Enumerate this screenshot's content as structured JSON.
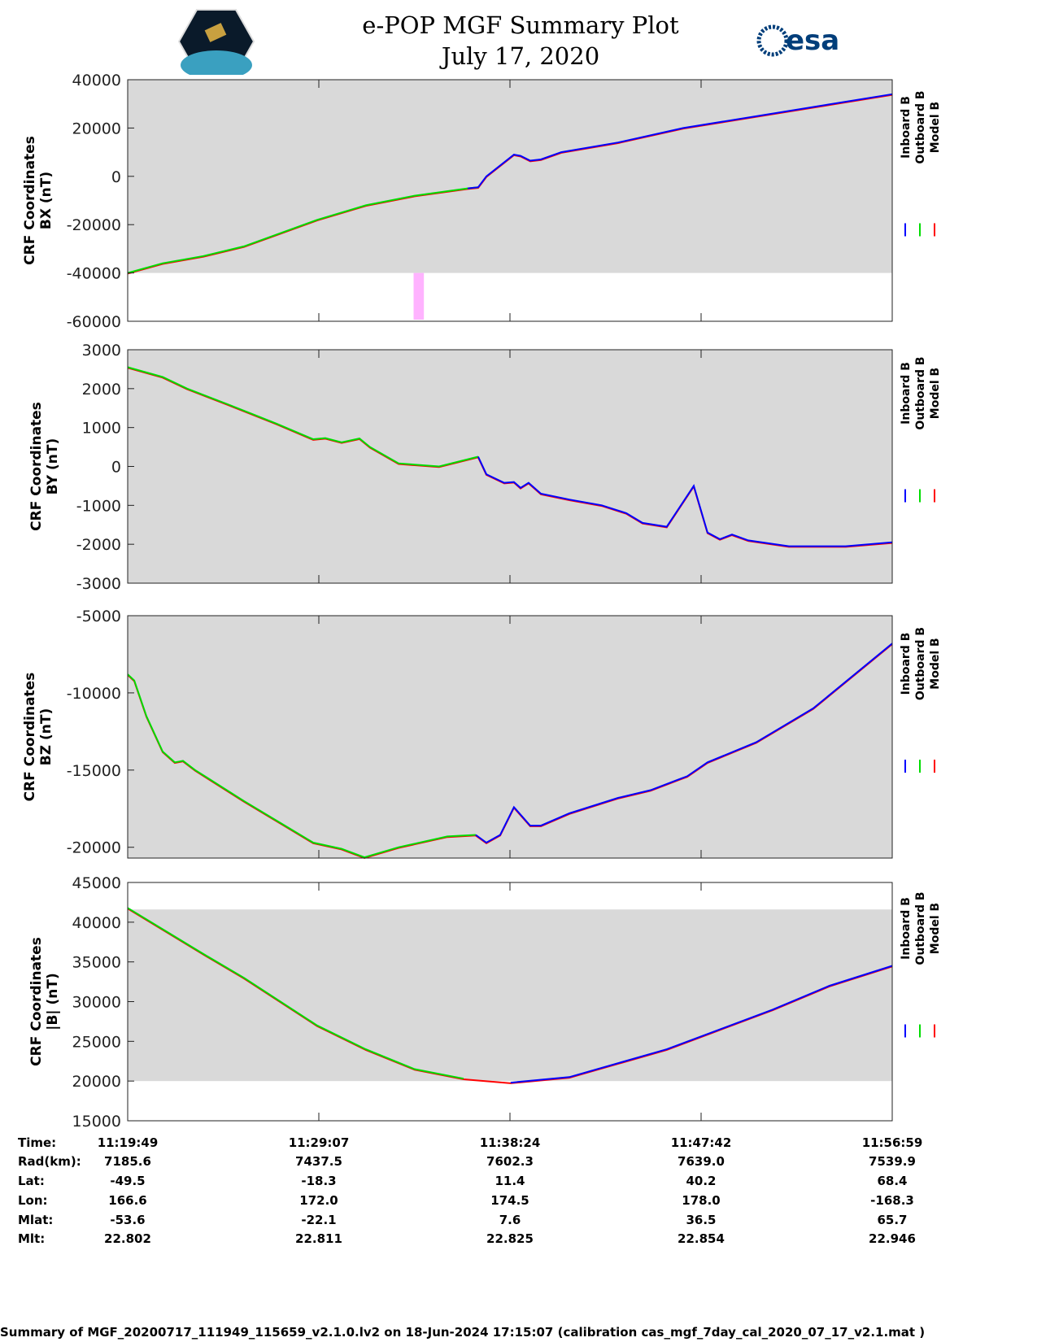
{
  "header": {
    "title_line1": "e-POP MGF Summary Plot",
    "title_line2": "July 17, 2020",
    "logo_right": "esa",
    "logo_left": "CASSIOPE"
  },
  "legend": [
    "Inboard B",
    "Outboard B",
    "Model B"
  ],
  "colors": {
    "inboard": "#0000ff",
    "outboard": "#00dd00",
    "model": "#ff0000",
    "background": "#d9d9d9",
    "flag": "#ffb3ff"
  },
  "chart_data": [
    {
      "type": "line",
      "ylabel": [
        "CRF Coordinates",
        "BX (nT)"
      ],
      "ylim": [
        -60000,
        40000
      ],
      "yticks": [
        40000,
        20000,
        0,
        -20000,
        -40000,
        -60000
      ],
      "valid_range": [
        -40000,
        40000
      ],
      "flag_interval": [
        13.9,
        14.4
      ],
      "x": [
        0,
        1.7,
        3.68,
        5.65,
        9.21,
        11.58,
        13.95,
        16.53,
        17.04,
        17.44,
        18.78,
        19.1,
        19.57,
        20.09,
        21.08,
        23.84,
        27.01,
        31.36,
        37.17
      ],
      "y": [
        -40000,
        -36000,
        -33000,
        -29000,
        -18000,
        -12000,
        -8000,
        -5000,
        -4500,
        0,
        9000,
        8500,
        6500,
        7000,
        10000,
        14000,
        20000,
        26000,
        34000
      ]
    },
    {
      "type": "line",
      "ylabel": [
        "CRF Coordinates",
        "BY (nT)"
      ],
      "ylim": [
        -3000,
        3000
      ],
      "yticks": [
        3000,
        2000,
        1000,
        0,
        -1000,
        -2000,
        -3000
      ],
      "valid_range": [
        -3000,
        3000
      ],
      "x": [
        0,
        1.7,
        2.89,
        4.86,
        7.24,
        9.02,
        9.61,
        10.4,
        11.27,
        11.78,
        13.17,
        15.14,
        17.04,
        17.44,
        18.31,
        18.78,
        19.1,
        19.49,
        20.09,
        21.47,
        23.05,
        24.24,
        25.03,
        26.21,
        27.52,
        28.19,
        28.79,
        29.38,
        30.17,
        32.15,
        34.91,
        37.17
      ],
      "y": [
        2550,
        2300,
        2000,
        1600,
        1100,
        700,
        730,
        620,
        720,
        500,
        80,
        0,
        250,
        -200,
        -420,
        -400,
        -550,
        -420,
        -700,
        -850,
        -1000,
        -1200,
        -1450,
        -1550,
        -500,
        -1700,
        -1870,
        -1750,
        -1900,
        -2050,
        -2050,
        -1950
      ]
    },
    {
      "type": "line",
      "ylabel": [
        "CRF Coordinates",
        "BZ (nT)"
      ],
      "ylim": [
        -20700,
        -5000
      ],
      "yticks": [
        -5000,
        -10000,
        -15000,
        -20000
      ],
      "valid_range": [
        -20700,
        -5000
      ],
      "x": [
        0,
        0.32,
        0.91,
        1.7,
        2.29,
        2.69,
        3.28,
        5.65,
        9.02,
        10.4,
        11.51,
        13.17,
        15.54,
        16.92,
        17.44,
        18.11,
        18.78,
        19.57,
        20.09,
        21.47,
        23.84,
        25.42,
        26.21,
        26.8,
        27.2,
        28.19,
        30.56,
        33.33,
        37.17
      ],
      "y": [
        -8800,
        -9200,
        -11500,
        -13800,
        -14500,
        -14400,
        -15000,
        -17000,
        -19700,
        -20100,
        -20650,
        -20000,
        -19300,
        -19200,
        -19700,
        -19200,
        -17400,
        -18600,
        -18600,
        -17800,
        -16800,
        -16300,
        -15900,
        -15600,
        -15400,
        -14500,
        -13200,
        -11000,
        -6800
      ]
    },
    {
      "type": "line",
      "ylabel": [
        "CRF Coordinates",
        "|B| (nT)"
      ],
      "ylim": [
        15000,
        45000
      ],
      "yticks": [
        45000,
        40000,
        35000,
        30000,
        25000,
        20000,
        15000
      ],
      "valid_range": [
        20000,
        41600
      ],
      "x": [
        0,
        3.68,
        5.65,
        9.21,
        11.58,
        13.95,
        16.33,
        18.62,
        21.47,
        26.21,
        31.36,
        34.12,
        37.17
      ],
      "y": [
        41800,
        36000,
        33000,
        27000,
        24000,
        21500,
        20300,
        19800,
        20500,
        24000,
        29000,
        32000,
        34500
      ]
    }
  ],
  "series_split_minute": 16.5,
  "xrange_minutes": 37.17,
  "table": {
    "labels": [
      "Time:",
      "Rad(km):",
      "Lat:",
      "Lon:",
      "Mlat:",
      "Mlt:"
    ],
    "columns": [
      [
        "11:19:49",
        "7185.6",
        "-49.5",
        "166.6",
        "-53.6",
        "22.802"
      ],
      [
        "11:29:07",
        "7437.5",
        "-18.3",
        "172.0",
        "-22.1",
        "22.811"
      ],
      [
        "11:38:24",
        "7602.3",
        "11.4",
        "174.5",
        "7.6",
        "22.825"
      ],
      [
        "11:47:42",
        "7639.0",
        "40.2",
        "178.0",
        "36.5",
        "22.854"
      ],
      [
        "11:56:59",
        "7539.9",
        "68.4",
        "-168.3",
        "65.7",
        "22.946"
      ]
    ]
  },
  "footer": "Summary of MGF_20200717_111949_115659_v2.1.0.lv2 on 18-Jun-2024 17:15:07 (calibration cas_mgf_7day_cal_2020_07_17_v2.1.mat )"
}
